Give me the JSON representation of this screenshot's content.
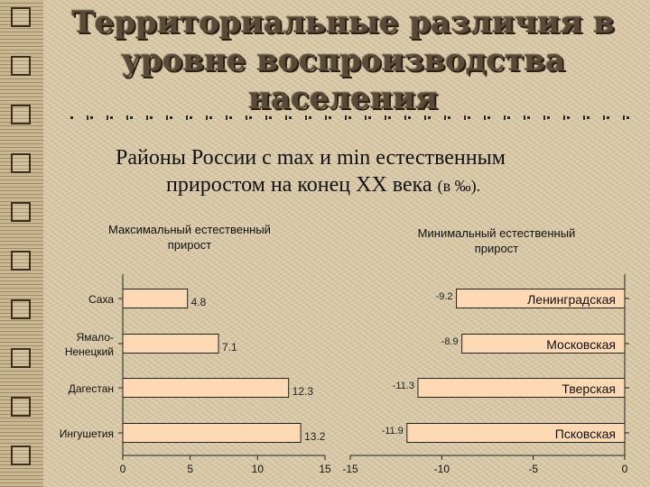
{
  "slide": {
    "title_lines": [
      "Территориальные различия в",
      "уровне воспроизводства",
      "населения"
    ],
    "subtitle_line1": "Районы России с max и min естественным",
    "subtitle_line2": "приростом на конец XX века",
    "subtitle_unit": "(в ‰)."
  },
  "colors": {
    "bar_fill": "#ffd9b3",
    "bar_stroke": "#222222"
  },
  "chart_data": [
    {
      "type": "bar",
      "orientation": "horizontal",
      "title": [
        "Максимальный естественный",
        "прирост"
      ],
      "categories": [
        "Саха",
        "Ямало-Ненецкий",
        "Дагестан",
        "Ингушетия"
      ],
      "category_lines": [
        [
          "Саха"
        ],
        [
          "Ямало-",
          "Ненецкий"
        ],
        [
          "Дагестан"
        ],
        [
          "Ингушетия"
        ]
      ],
      "values": [
        4.8,
        7.1,
        12.3,
        13.2
      ],
      "value_labels": [
        "4.8",
        "7.1",
        "12.3",
        "13.2"
      ],
      "xlim": [
        0,
        15
      ],
      "xticks": [
        0,
        5,
        10,
        15
      ]
    },
    {
      "type": "bar",
      "orientation": "horizontal",
      "title": [
        "Минимальный естественный",
        "прирост"
      ],
      "categories": [
        "Ленинградская",
        "Московская",
        "Тверская",
        "Псковская"
      ],
      "values": [
        -9.2,
        -8.9,
        -11.3,
        -11.9
      ],
      "value_labels": [
        "-9.2",
        "-8.9",
        "-11.3",
        "-11.9"
      ],
      "xlim": [
        -15,
        0
      ],
      "xticks": [
        -15,
        -10,
        -5,
        0
      ]
    }
  ]
}
